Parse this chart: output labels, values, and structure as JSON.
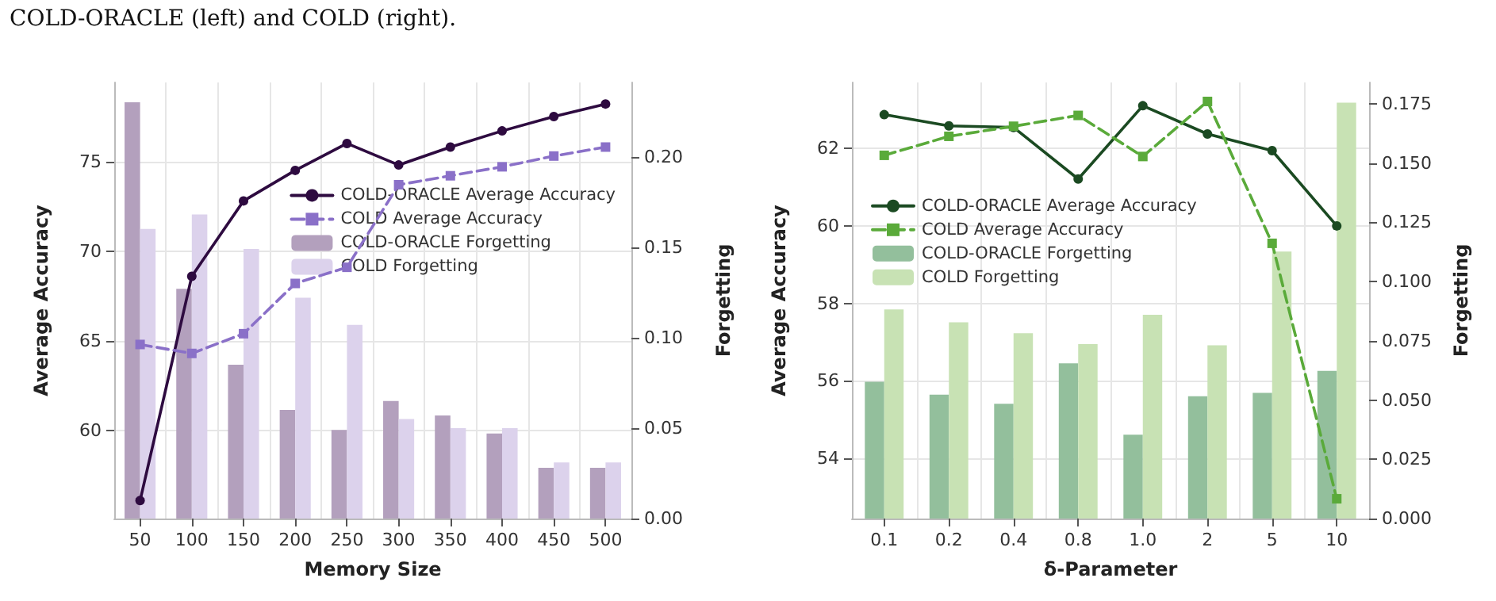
{
  "chart_data": [
    {
      "type": "line",
      "annotations": [
        "COLD-ORACLE (left) and COLD (right)."
      ],
      "xlabel": "Memory Size",
      "ylabel": "Average Accuracy",
      "y2label": "Forgetting",
      "categories": [
        "50",
        "100",
        "150",
        "200",
        "250",
        "300",
        "350",
        "400",
        "450",
        "500"
      ],
      "ylim": [
        55.1,
        79.4
      ],
      "yticks": [
        60,
        65,
        70,
        75
      ],
      "y2lim": [
        0,
        0.241
      ],
      "y2ticks": [
        {
          "value": 0,
          "label": "0.00"
        },
        {
          "value": 0.05,
          "label": "0.05"
        },
        {
          "value": 0.1,
          "label": "0.10"
        },
        {
          "value": 0.15,
          "label": "0.15"
        },
        {
          "value": 0.2,
          "label": "0.20"
        }
      ],
      "grid": true,
      "legend": "right",
      "series": [
        {
          "name": "COLD-ORACLE Forgetting",
          "type": "bar",
          "axis": "y2",
          "color": "#b3a0bd",
          "values": [
            0.23,
            0.127,
            0.085,
            0.06,
            0.049,
            0.065,
            0.057,
            0.047,
            0.028,
            0.028
          ]
        },
        {
          "name": "COLD Forgetting",
          "type": "bar",
          "axis": "y2",
          "color": "#dcd2ec",
          "values": [
            0.16,
            0.168,
            0.149,
            0.122,
            0.107,
            0.055,
            0.05,
            0.05,
            0.031,
            0.031
          ]
        },
        {
          "name": "COLD-ORACLE Average Accuracy",
          "marker": "circle",
          "line_style": "solid",
          "color": "#2e0b40",
          "values": [
            56.1,
            68.6,
            72.8,
            74.5,
            76.0,
            74.8,
            75.8,
            76.7,
            77.5,
            78.2
          ]
        },
        {
          "name": "COLD Average Accuracy",
          "marker": "square",
          "line_style": "dashed",
          "color": "#8a70c8",
          "values": [
            64.8,
            64.3,
            65.4,
            68.2,
            69.1,
            73.7,
            74.2,
            74.7,
            75.3,
            75.8
          ]
        }
      ]
    },
    {
      "type": "line",
      "xlabel": "δ-Parameter",
      "ylabel": "Average Accuracy",
      "y2label": "Forgetting",
      "categories": [
        "0.1",
        "0.2",
        "0.4",
        "0.8",
        "1.0",
        "2",
        "5",
        "10"
      ],
      "ylim": [
        52.45,
        63.7
      ],
      "yticks": [
        54,
        56,
        58,
        60,
        62
      ],
      "y2lim": [
        0,
        0.184
      ],
      "y2ticks": [
        {
          "value": 0,
          "label": "0.000"
        },
        {
          "value": 0.025,
          "label": "0.025"
        },
        {
          "value": 0.05,
          "label": "0.050"
        },
        {
          "value": 0.075,
          "label": "0.075"
        },
        {
          "value": 0.1,
          "label": "0.100"
        },
        {
          "value": 0.125,
          "label": "0.125"
        },
        {
          "value": 0.15,
          "label": "0.150"
        },
        {
          "value": 0.175,
          "label": "0.175"
        }
      ],
      "grid": true,
      "legend": "left",
      "series": [
        {
          "name": "COLD-ORACLE Forgetting",
          "type": "bar",
          "axis": "y2",
          "color": "#93bf9c",
          "values": [
            0.0577,
            0.0523,
            0.0484,
            0.0655,
            0.0354,
            0.0516,
            0.053,
            0.0623
          ]
        },
        {
          "name": "COLD Forgetting",
          "type": "bar",
          "axis": "y2",
          "color": "#c8e2b4",
          "values": [
            0.0882,
            0.0828,
            0.0782,
            0.0736,
            0.086,
            0.0731,
            0.1127,
            0.1755
          ]
        },
        {
          "name": "COLD-ORACLE Average Accuracy",
          "marker": "circle",
          "line_style": "solid",
          "color": "#1b4a22",
          "values": [
            62.87,
            62.58,
            62.54,
            61.21,
            63.1,
            62.37,
            61.94,
            60.0
          ]
        },
        {
          "name": "COLD Average Accuracy",
          "marker": "square",
          "line_style": "dashed",
          "color": "#5aaa3a",
          "values": [
            61.82,
            62.31,
            62.57,
            62.85,
            61.79,
            63.21,
            59.55,
            52.96
          ]
        }
      ]
    }
  ]
}
